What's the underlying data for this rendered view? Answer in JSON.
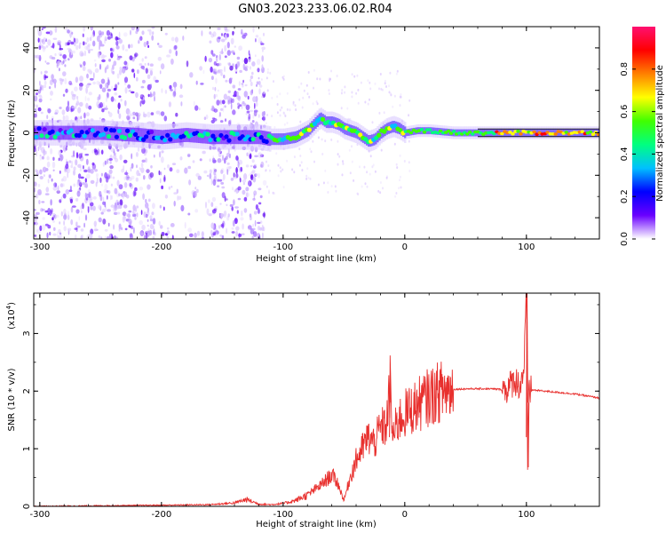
{
  "title": "GN03.2023.233.06.02.R04",
  "chart_data": [
    {
      "type": "heatmap",
      "xlabel": "Height of straight line (km)",
      "ylabel": "Frequency (Hz)",
      "xlim": [
        -305,
        160
      ],
      "ylim": [
        -50,
        50
      ],
      "xticks": [
        -300,
        -200,
        -100,
        0,
        100
      ],
      "xtick_labels": [
        "-300",
        "-200",
        "-100",
        "0",
        "100"
      ],
      "yticks": [
        -40,
        -20,
        0,
        20,
        40
      ],
      "ytick_labels": [
        "-40",
        "-20",
        "0",
        "20",
        "40"
      ],
      "ridge": {
        "x": [
          -305,
          -280,
          -250,
          -220,
          -200,
          -180,
          -160,
          -140,
          -120,
          -110,
          -100,
          -90,
          -80,
          -75,
          -70,
          -65,
          -60,
          -55,
          -50,
          -45,
          -40,
          -35,
          -30,
          -25,
          -20,
          -15,
          -10,
          -5,
          0,
          10,
          20,
          40,
          60,
          80,
          100,
          120,
          140,
          160
        ],
        "y": [
          0,
          0,
          0,
          -1,
          -2,
          -1,
          -2,
          -2,
          -2,
          -3,
          -3,
          -2,
          1,
          4,
          7,
          5,
          5,
          4,
          2,
          1,
          0,
          -2,
          -4,
          -3,
          0,
          2,
          3,
          2,
          0,
          1,
          1,
          0,
          0,
          0,
          0,
          0,
          0,
          0
        ]
      },
      "colorbar": {
        "label": "Normalized spectral amplitude",
        "range": [
          0,
          1
        ],
        "ticks": [
          0.0,
          0.2,
          0.4,
          0.6,
          0.8
        ],
        "tick_labels": [
          "0.0",
          "0.2",
          "0.4",
          "0.6",
          "0.8"
        ],
        "colors": [
          "#ffffff",
          "#6a00ff",
          "#0000ff",
          "#00c0ff",
          "#00ff80",
          "#40ff00",
          "#ffff00",
          "#ff8000",
          "#ff0000",
          "#ff1070"
        ]
      }
    },
    {
      "type": "line",
      "xlabel": "Height of straight line (km)",
      "ylabel": "SNR (10 * v/v)",
      "y_multiplier_label": "(x10",
      "y_multiplier_exp": "4",
      "xlim": [
        -305,
        160
      ],
      "ylim": [
        0,
        3.7
      ],
      "xticks": [
        -300,
        -200,
        -100,
        0,
        100
      ],
      "xtick_labels": [
        "-300",
        "-200",
        "-100",
        "0",
        "100"
      ],
      "yticks": [
        0,
        1,
        2,
        3
      ],
      "ytick_labels": [
        "0",
        "1",
        "2",
        "3"
      ],
      "color": "#e8302e",
      "series": [
        {
          "x": [
            -305,
            -250,
            -200,
            -160,
            -140,
            -130,
            -120,
            -110,
            -100,
            -90,
            -80,
            -70,
            -60,
            -55,
            -50,
            -45,
            -40,
            -35,
            -30,
            -25,
            -20,
            -15,
            -12,
            -10,
            -5,
            0,
            10,
            20,
            30,
            40,
            50,
            60,
            70,
            80,
            85,
            90,
            95,
            98,
            100,
            101,
            102,
            103,
            105,
            110,
            120,
            140,
            160
          ],
          "y": [
            0.0,
            0.01,
            0.02,
            0.03,
            0.06,
            0.12,
            0.04,
            0.03,
            0.05,
            0.1,
            0.2,
            0.35,
            0.55,
            0.4,
            0.1,
            0.5,
            0.8,
            1.0,
            1.2,
            1.1,
            1.35,
            1.4,
            2.1,
            1.2,
            1.5,
            1.6,
            1.75,
            1.9,
            2.0,
            2.03,
            2.04,
            2.04,
            2.04,
            2.03,
            2.05,
            2.2,
            2.1,
            2.4,
            3.7,
            0.7,
            2.2,
            2.0,
            2.02,
            2.01,
            1.99,
            1.95,
            1.88
          ]
        }
      ]
    }
  ]
}
